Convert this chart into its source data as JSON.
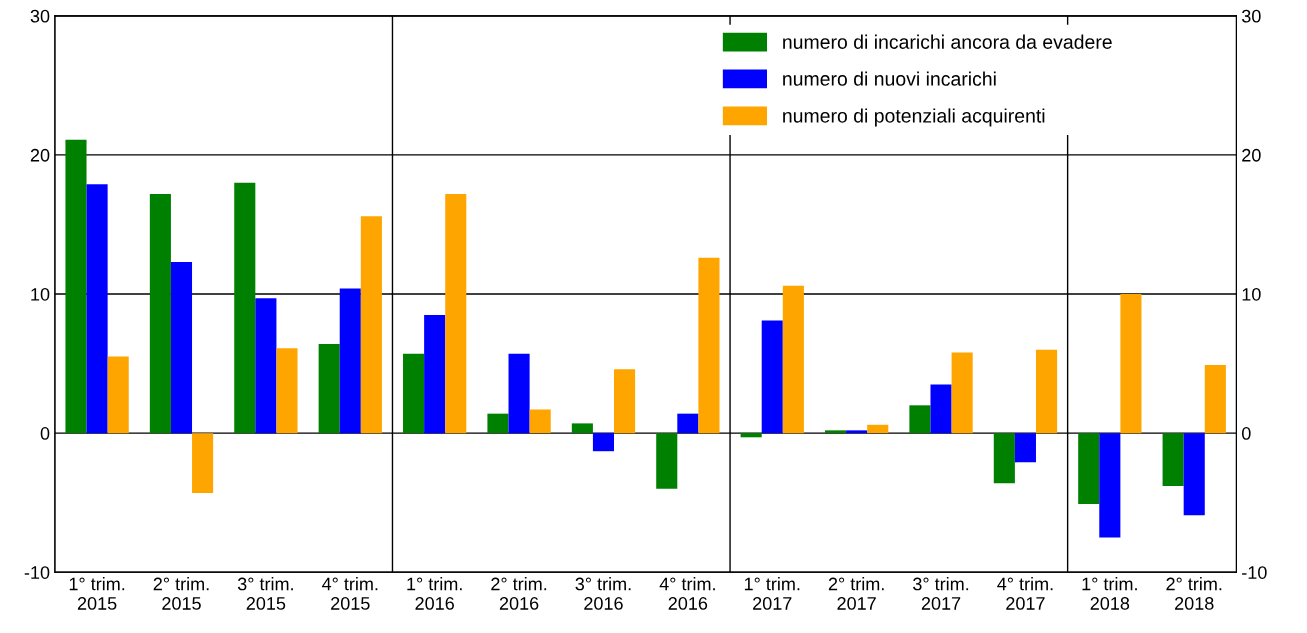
{
  "chart_data": {
    "type": "bar",
    "categories": [
      "1° trim.\n2015",
      "2° trim.\n2015",
      "3° trim.\n2015",
      "4° trim.\n2015",
      "1° trim.\n2016",
      "2° trim.\n2016",
      "3° trim.\n2016",
      "4° trim.\n2016",
      "1° trim.\n2017",
      "2° trim.\n2017",
      "3° trim.\n2017",
      "4° trim.\n2017",
      "1° trim.\n2018",
      "2° trim.\n2018"
    ],
    "series": [
      {
        "name": "numero di incarichi ancora da evadere",
        "color": "#008000",
        "values": [
          21.1,
          17.2,
          18.0,
          6.4,
          5.7,
          1.4,
          0.7,
          -4.0,
          -0.3,
          0.2,
          2.0,
          -3.6,
          -5.1,
          -3.8
        ]
      },
      {
        "name": "numero di nuovi incarichi",
        "color": "#0000ff",
        "values": [
          17.9,
          12.3,
          9.7,
          10.4,
          8.5,
          5.7,
          -1.3,
          1.4,
          8.1,
          0.2,
          3.5,
          -2.1,
          -7.5,
          -5.9
        ]
      },
      {
        "name": "numero di potenziali acquirenti",
        "color": "#ffa500",
        "values": [
          5.5,
          -4.3,
          6.1,
          15.6,
          17.2,
          1.7,
          4.6,
          12.6,
          10.6,
          0.6,
          5.8,
          6.0,
          10.0,
          4.9
        ]
      }
    ],
    "ylim": [
      -10,
      30
    ],
    "yticks": [
      -10,
      0,
      10,
      20,
      30
    ],
    "y2lim": [
      -10,
      30
    ],
    "y2ticks": [
      -10,
      0,
      10,
      20,
      30
    ],
    "grid": "y",
    "legend": "top right"
  }
}
